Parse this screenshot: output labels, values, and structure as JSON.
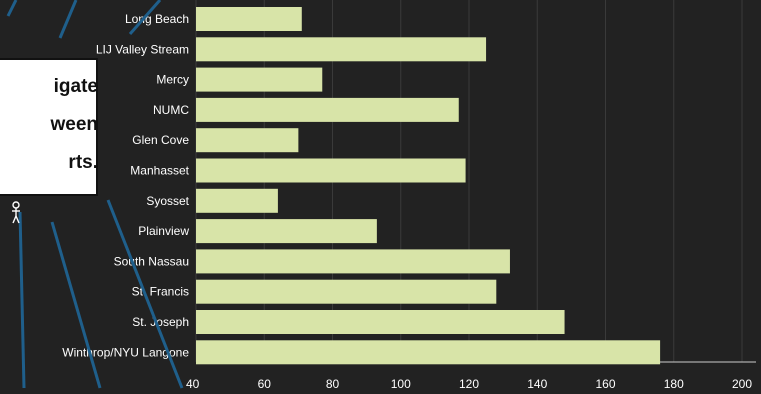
{
  "chart_data": {
    "type": "bar",
    "orientation": "horizontal",
    "categories": [
      "Long Beach",
      "LIJ Valley Stream",
      "Mercy",
      "NUMC",
      "Glen Cove",
      "Manhasset",
      "Syosset",
      "Plainview",
      "South Nassau",
      "St. Francis",
      "St. Joseph",
      "Winthrop/NYU Langone"
    ],
    "values": [
      71,
      125,
      77,
      117,
      70,
      119,
      64,
      93,
      132,
      128,
      148,
      176
    ],
    "xlim": [
      40,
      200
    ],
    "xticks": [
      "40",
      "60",
      "80",
      "100",
      "120",
      "140",
      "160",
      "180",
      "200"
    ],
    "grid": true,
    "colors": {
      "bar": "#d8e4a8",
      "background": "#222222",
      "grid": "#3a3a3a",
      "axis": "#cccccc",
      "arrow": "#1f5f8b"
    }
  },
  "callout": {
    "lines": [
      "igate",
      "ween",
      "rts."
    ]
  },
  "overlay_icon": "hanging-figure-icon"
}
